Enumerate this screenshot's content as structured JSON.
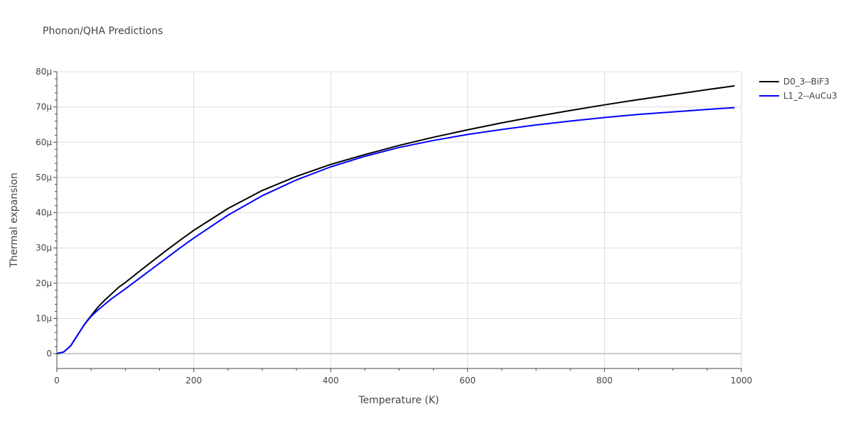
{
  "chart_data": {
    "type": "line",
    "title": "Phonon/QHA Predictions",
    "xlabel": "Temperature (K)",
    "ylabel": "Thermal expansion",
    "xlim": [
      0,
      1000
    ],
    "ylim": [
      -4.2,
      80
    ],
    "xticks": [
      0,
      200,
      400,
      600,
      800,
      1000
    ],
    "yticks": [
      0,
      10,
      20,
      30,
      40,
      50,
      60,
      70,
      80
    ],
    "ytick_labels": [
      "0",
      "10μ",
      "20μ",
      "30μ",
      "40μ",
      "50μ",
      "60μ",
      "70μ",
      "80μ"
    ],
    "grid": true,
    "legend_position": "right",
    "series": [
      {
        "name": "D0_3--BiF3",
        "color": "#000000",
        "x": [
          0,
          10,
          20,
          30,
          40,
          50,
          60,
          70,
          80,
          90,
          100,
          120,
          140,
          160,
          180,
          200,
          250,
          300,
          350,
          400,
          450,
          500,
          550,
          600,
          650,
          700,
          750,
          800,
          850,
          900,
          950,
          990
        ],
        "y": [
          0,
          0.5,
          2.2,
          5.2,
          8.2,
          10.8,
          13.2,
          15.2,
          17.0,
          18.8,
          20.2,
          23.3,
          26.3,
          29.3,
          32.2,
          35.0,
          41.2,
          46.3,
          50.3,
          53.7,
          56.5,
          59.1,
          61.4,
          63.5,
          65.5,
          67.3,
          69.0,
          70.6,
          72.1,
          73.5,
          74.9,
          76.0
        ]
      },
      {
        "name": "L1_2--AuCu3",
        "color": "#0000ff",
        "x": [
          0,
          10,
          20,
          30,
          40,
          50,
          60,
          70,
          80,
          90,
          100,
          120,
          140,
          160,
          180,
          200,
          250,
          300,
          350,
          400,
          450,
          500,
          550,
          600,
          650,
          700,
          750,
          800,
          850,
          900,
          950,
          990
        ],
        "y": [
          0,
          0.5,
          2.2,
          5.2,
          8.2,
          10.6,
          12.4,
          14.0,
          15.6,
          17.0,
          18.4,
          21.3,
          24.2,
          27.1,
          30.0,
          32.8,
          39.3,
          44.8,
          49.3,
          53.0,
          56.0,
          58.5,
          60.5,
          62.2,
          63.6,
          64.9,
          66.0,
          67.0,
          67.9,
          68.6,
          69.3,
          69.8
        ]
      }
    ]
  }
}
